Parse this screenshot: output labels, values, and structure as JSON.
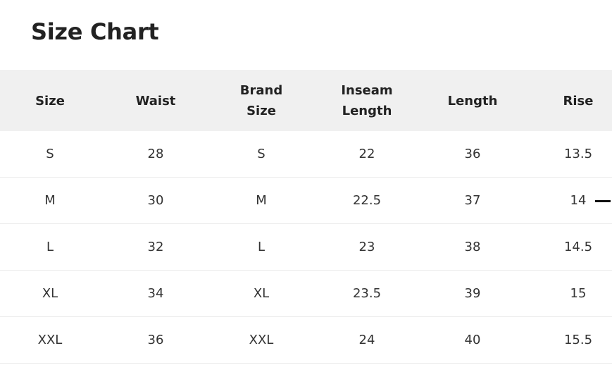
{
  "title": "Size Chart",
  "table": {
    "headers": [
      [
        "Size"
      ],
      [
        "Waist"
      ],
      [
        "Brand",
        "Size"
      ],
      [
        "Inseam",
        "Length"
      ],
      [
        "Length"
      ],
      [
        "Rise"
      ]
    ],
    "rows": [
      [
        "S",
        "28",
        "S",
        "22",
        "36",
        "13.5"
      ],
      [
        "M",
        "30",
        "M",
        "22.5",
        "37",
        "14"
      ],
      [
        "L",
        "32",
        "L",
        "23",
        "38",
        "14.5"
      ],
      [
        "XL",
        "34",
        "XL",
        "23.5",
        "39",
        "15"
      ],
      [
        "XXL",
        "36",
        "XXL",
        "24",
        "40",
        "15.5"
      ]
    ]
  }
}
